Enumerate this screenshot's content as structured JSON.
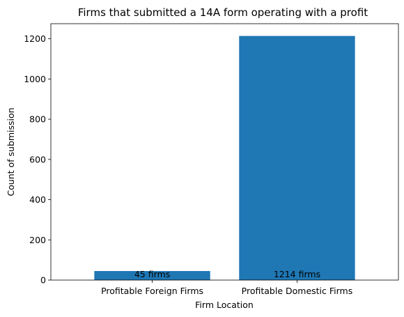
{
  "chart_data": {
    "type": "bar",
    "title": "Firms that submitted a 14A form operating with a profit",
    "xlabel": "Firm Location",
    "ylabel": "Count of submission",
    "categories": [
      "Profitable Foreign Firms",
      "Profitable Domestic Firms"
    ],
    "values": [
      45,
      1214
    ],
    "bar_labels": [
      "45 firms",
      "1214 firms"
    ],
    "ylim": [
      0,
      1275
    ],
    "yticks": [
      0,
      200,
      400,
      600,
      800,
      1000,
      1200
    ],
    "bar_color": "#1f77b4",
    "grid": false,
    "legend": "none"
  }
}
